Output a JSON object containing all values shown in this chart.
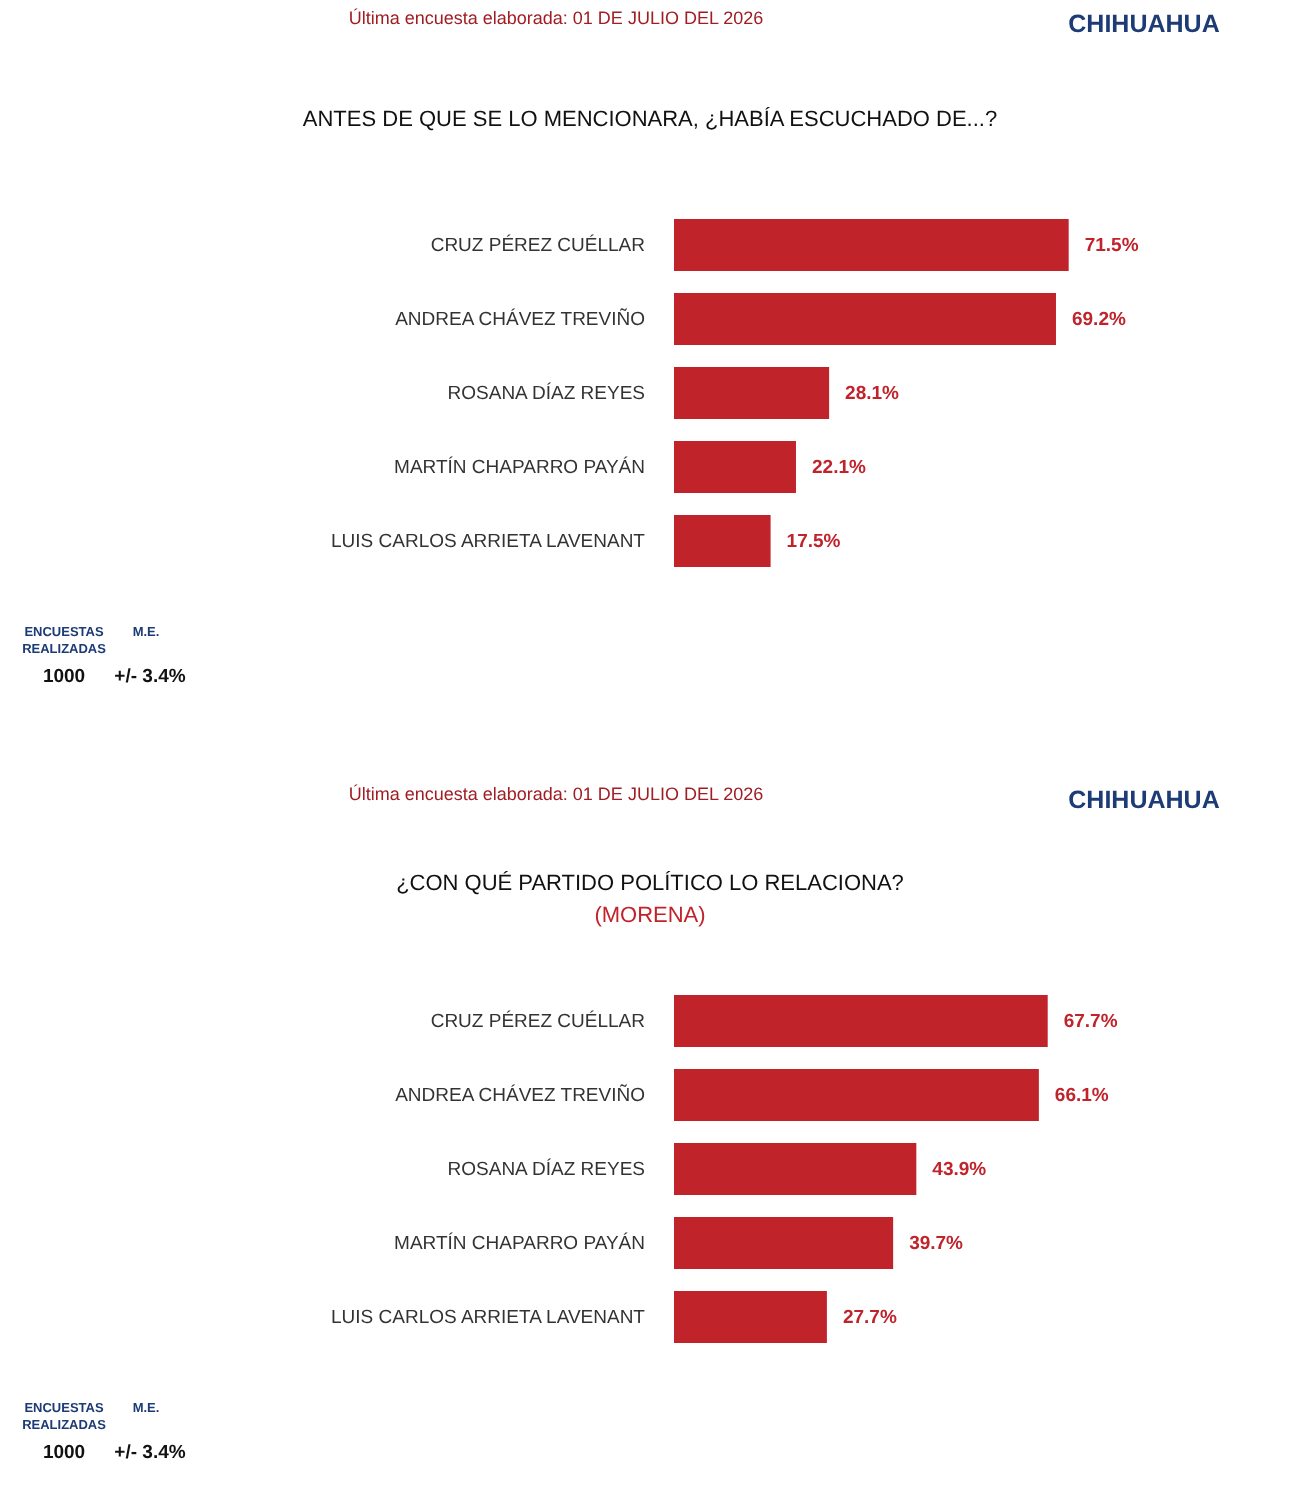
{
  "chart_data": [
    {
      "type": "bar",
      "orientation": "horizontal",
      "title": "ANTES DE QUE SE LO MENCIONARA, ¿HABÍA ESCUCHADO DE...?",
      "categories": [
        "CRUZ PÉREZ CUÉLLAR",
        "ANDREA CHÁVEZ TREVIÑO",
        "ROSANA DÍAZ REYES",
        "MARTÍN CHAPARRO PAYÁN",
        "LUIS CARLOS ARRIETA LAVENANT"
      ],
      "values": [
        71.5,
        69.2,
        28.1,
        22.1,
        17.5
      ],
      "value_labels": [
        "71.5%",
        "69.2%",
        "28.1%",
        "22.1%",
        "17.5%"
      ],
      "color": "#c1232b",
      "tick_labels": "y",
      "annotations": [
        "Última encuesta elaborada: 01 DE JULIO DEL 2026",
        "CHIHUAHUA",
        "ENCUESTAS REALIZADAS",
        "M.E.",
        "1000",
        "+/- 3.4%"
      ]
    },
    {
      "type": "bar",
      "orientation": "horizontal",
      "title": "¿CON QUÉ PARTIDO POLÍTICO LO RELACIONA?",
      "subtitle": "(MORENA)",
      "categories": [
        "CRUZ PÉREZ CUÉLLAR",
        "ANDREA CHÁVEZ TREVIÑO",
        "ROSANA DÍAZ REYES",
        "MARTÍN CHAPARRO PAYÁN",
        "LUIS CARLOS ARRIETA LAVENANT"
      ],
      "values": [
        67.7,
        66.1,
        43.9,
        39.7,
        27.7
      ],
      "value_labels": [
        "67.7%",
        "66.1%",
        "43.9%",
        "39.7%",
        "27.7%"
      ],
      "color": "#c1232b",
      "tick_labels": "y",
      "annotations": [
        "Última encuesta elaborada: 01 DE JULIO DEL 2026",
        "CHIHUAHUA",
        "ENCUESTAS REALIZADAS",
        "M.E.",
        "1000",
        "+/- 3.4%"
      ]
    }
  ]
}
